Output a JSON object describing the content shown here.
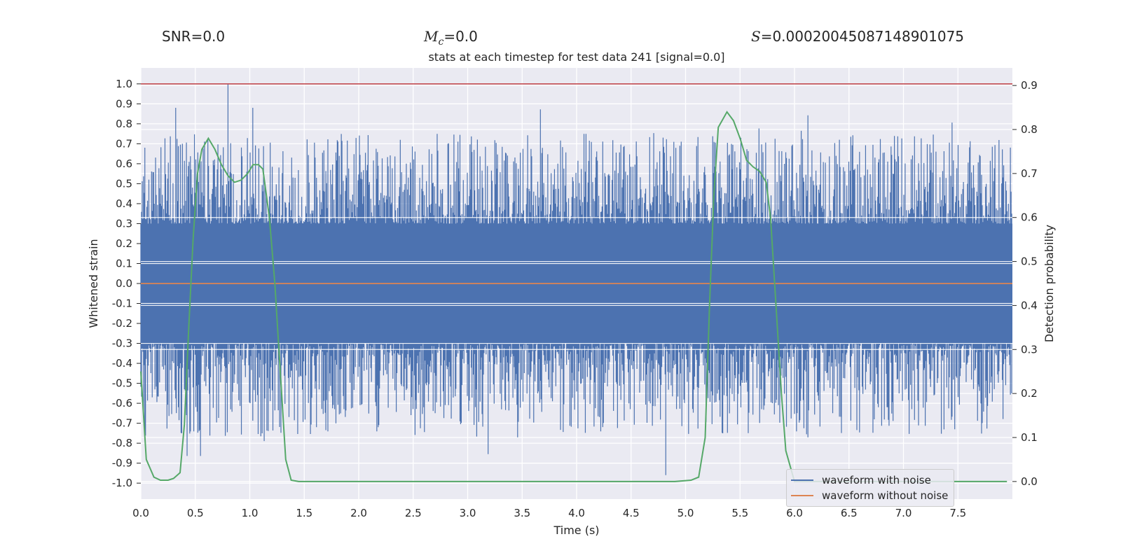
{
  "header": {
    "snr_label": "SNR",
    "snr_value": "=0.0",
    "mc_symbol": "M",
    "mc_sub": "c",
    "mc_value": "=0.0",
    "s_symbol": "S",
    "s_value": "=0.00020045087148901075"
  },
  "chart_data": {
    "type": "line",
    "title": "stats at each timestep for test data 241 [signal=0.0]",
    "xlabel": "Time (s)",
    "ylabel": "Whitened strain",
    "ylabel_right": "Detection probability",
    "xlim": [
      0.0,
      8.0
    ],
    "ylim": [
      -1.08,
      1.08
    ],
    "ylim_right": [
      -0.04,
      0.94
    ],
    "x_ticks": [
      "0.0",
      "0.5",
      "1.0",
      "1.5",
      "2.0",
      "2.5",
      "3.0",
      "3.5",
      "4.0",
      "4.5",
      "5.0",
      "5.5",
      "6.0",
      "6.5",
      "7.0",
      "7.5"
    ],
    "y_ticks": [
      "1.0",
      "0.9",
      "0.8",
      "0.7",
      "0.6",
      "0.5",
      "0.4",
      "0.3",
      "0.2",
      "0.1",
      "0.0",
      "-0.1",
      "-0.2",
      "-0.3",
      "-0.4",
      "-0.5",
      "-0.6",
      "-0.7",
      "-0.8",
      "-0.9",
      "-1.0"
    ],
    "y_ticks_right": [
      "0.9",
      "0.8",
      "0.7",
      "0.6",
      "0.5",
      "0.4",
      "0.3",
      "0.2",
      "0.1",
      "0.0"
    ],
    "grid": true,
    "threshold": 1.0,
    "noise_envelope": {
      "typical_peak": 0.5,
      "max_peak": 1.0,
      "max_peak_time": 0.8,
      "min_trough": -0.96,
      "min_trough_time": 4.82
    },
    "series": [
      {
        "name": "waveform with noise",
        "axis": "left",
        "color": "#4c72b0",
        "note": "dense noise trace spanning roughly -0.96 to 1.0"
      },
      {
        "name": "waveform without noise",
        "axis": "left",
        "color": "#dd8452",
        "x": [
          0.0,
          8.0
        ],
        "y": [
          0.0,
          0.0
        ]
      },
      {
        "name": "detection probability",
        "axis": "right",
        "color": "#55a868",
        "x": [
          0.0,
          0.05,
          0.12,
          0.18,
          0.25,
          0.3,
          0.36,
          0.4,
          0.44,
          0.48,
          0.52,
          0.56,
          0.62,
          0.68,
          0.74,
          0.8,
          0.86,
          0.92,
          0.98,
          1.03,
          1.08,
          1.12,
          1.18,
          1.23,
          1.28,
          1.33,
          1.38,
          1.45,
          1.6,
          2.0,
          3.0,
          4.0,
          4.9,
          5.05,
          5.12,
          5.18,
          5.22,
          5.26,
          5.3,
          5.38,
          5.44,
          5.5,
          5.56,
          5.62,
          5.68,
          5.74,
          5.78,
          5.83,
          5.88,
          5.92,
          6.0,
          7.0,
          7.95
        ],
        "y": [
          0.25,
          0.05,
          0.01,
          0.003,
          0.003,
          0.007,
          0.02,
          0.13,
          0.35,
          0.55,
          0.7,
          0.755,
          0.78,
          0.755,
          0.72,
          0.695,
          0.68,
          0.685,
          0.7,
          0.72,
          0.72,
          0.71,
          0.6,
          0.45,
          0.25,
          0.05,
          0.003,
          0.0,
          0.0,
          0.0,
          0.0,
          0.0,
          0.0,
          0.003,
          0.01,
          0.1,
          0.4,
          0.65,
          0.805,
          0.84,
          0.82,
          0.78,
          0.73,
          0.715,
          0.705,
          0.68,
          0.6,
          0.4,
          0.2,
          0.07,
          0.0,
          0.0,
          0.0
        ]
      }
    ],
    "legend": {
      "position": "lower right",
      "entries": [
        {
          "label": "waveform with noise",
          "color": "#4c72b0"
        },
        {
          "label": "waveform without noise",
          "color": "#dd8452"
        }
      ]
    }
  }
}
